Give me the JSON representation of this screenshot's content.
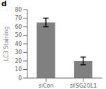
{
  "chart_data": {
    "type": "bar",
    "categories": [
      "siCon",
      "silSG20L1"
    ],
    "values": [
      65.0,
      20.0
    ],
    "errors": [
      5.0,
      4.5
    ],
    "color": "#808080",
    "ylabel": "LC3 Staining",
    "ylim": [
      0,
      80
    ],
    "yticks": [
      0,
      10,
      20,
      30,
      40,
      50,
      60,
      70,
      80
    ],
    "grid": false,
    "annotations": [
      "d"
    ]
  }
}
